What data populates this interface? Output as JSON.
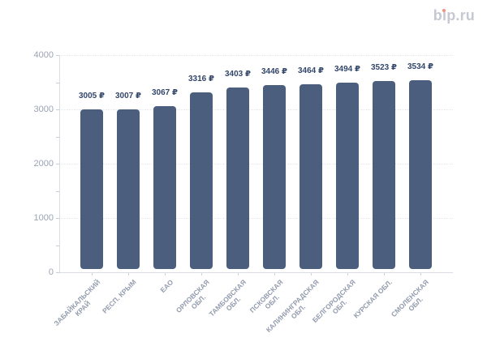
{
  "brand": {
    "text": "bip.ru",
    "text_render": "bıp.ru",
    "accent_color": "#f2917c",
    "text_color": "#c6c9d4"
  },
  "chart_data": {
    "type": "bar",
    "title": "",
    "xlabel": "",
    "ylabel": "",
    "categories": [
      "ЗАБАЙКАЛЬСКИЙ КРАЙ",
      "РЕСП. КРЫМ",
      "ЕАО",
      "ОРЛОВСКАЯ ОБЛ.",
      "ТАМБОВСКАЯ ОБЛ.",
      "ПСКОВСКАЯ ОБЛ.",
      "КАЛИНИНГРАДСКАЯ ОБЛ.",
      "БЕЛГОРОДСКАЯ ОБЛ.",
      "КУРСКАЯ ОБЛ.",
      "СМОЛЕНСКАЯ ОБЛ."
    ],
    "category_lines": [
      [
        "ЗАБАЙКАЛЬСКИЙ",
        "КРАЙ"
      ],
      [
        "РЕСП. КРЫМ"
      ],
      [
        "ЕАО"
      ],
      [
        "ОРЛОВСКАЯ",
        "ОБЛ."
      ],
      [
        "ТАМБОВСКАЯ",
        "ОБЛ."
      ],
      [
        "ПСКОВСКАЯ",
        "ОБЛ."
      ],
      [
        "КАЛИНИНГРАДСКАЯ",
        "ОБЛ."
      ],
      [
        "БЕЛГОРОДСКАЯ",
        "ОБЛ."
      ],
      [
        "КУРСКАЯ ОБЛ."
      ],
      [
        "СМОЛЕНСКАЯ",
        "ОБЛ."
      ]
    ],
    "values": [
      3005,
      3007,
      3067,
      3316,
      3403,
      3446,
      3464,
      3494,
      3523,
      3534
    ],
    "value_labels": [
      "3005 ₽",
      "3007 ₽",
      "3067 ₽",
      "3316 ₽",
      "3403 ₽",
      "3446 ₽",
      "3464 ₽",
      "3494 ₽",
      "3523 ₽",
      "3534 ₽"
    ],
    "currency": "₽",
    "ylim": [
      0,
      4000
    ],
    "yticks": [
      0,
      1000,
      2000,
      3000,
      4000
    ],
    "yticks_minor": [
      500,
      1500,
      2500,
      3500
    ],
    "grid": "horizontal-dotted",
    "legend": "none",
    "bar_color": "#4c5e7d",
    "value_label_color": "#32466a",
    "axis_label_color": "#9aa3b4"
  }
}
